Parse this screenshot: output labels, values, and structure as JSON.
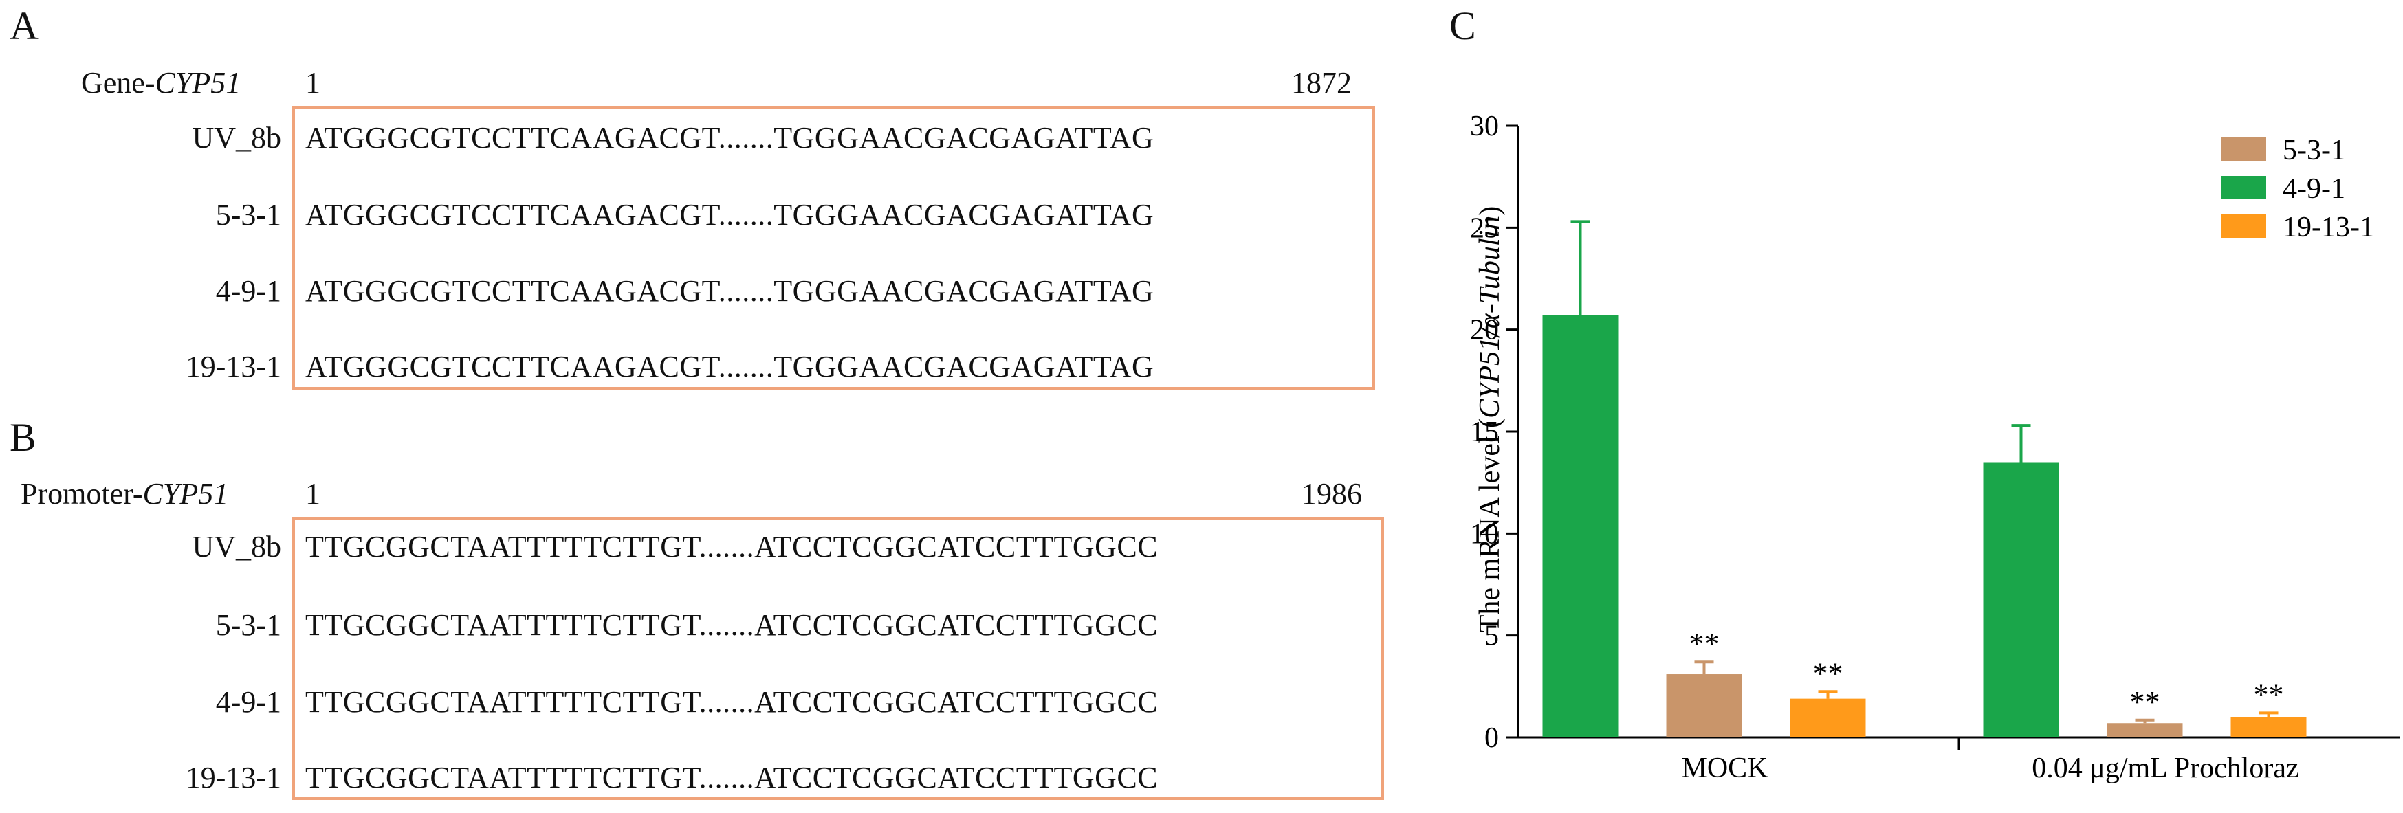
{
  "panels": {
    "a": {
      "letter": "A",
      "title_prefix": "Gene-",
      "title_italic": "CYP51",
      "start": "1",
      "end": "1872",
      "rows": [
        {
          "label": "UV_8b",
          "seq": "ATGGGCGTCCTTCAAGACGT.......TGGGAACGACGAGATTAG"
        },
        {
          "label": "5-3-1",
          "seq": "ATGGGCGTCCTTCAAGACGT.......TGGGAACGACGAGATTAG"
        },
        {
          "label": "4-9-1",
          "seq": "ATGGGCGTCCTTCAAGACGT.......TGGGAACGACGAGATTAG"
        },
        {
          "label": "19-13-1",
          "seq": "ATGGGCGTCCTTCAAGACGT.......TGGGAACGACGAGATTAG"
        }
      ]
    },
    "b": {
      "letter": "B",
      "title_prefix": "Promoter-",
      "title_italic": "CYP51",
      "start": "1",
      "end": "1986",
      "rows": [
        {
          "label": "UV_8b",
          "seq": "TTGCGGCTAATTTTTCTTGT.......ATCCTCGGCATCCTTTGGCC"
        },
        {
          "label": "5-3-1",
          "seq": "TTGCGGCTAATTTTTCTTGT.......ATCCTCGGCATCCTTTGGCC"
        },
        {
          "label": "4-9-1",
          "seq": "TTGCGGCTAATTTTTCTTGT.......ATCCTCGGCATCCTTTGGCC"
        },
        {
          "label": "19-13-1",
          "seq": "TTGCGGCTAATTTTTCTTGT.......ATCCTCGGCATCCTTTGGCC"
        }
      ]
    },
    "c": {
      "letter": "C"
    }
  },
  "colors": {
    "box": "#f0a37a"
  },
  "chart_data": {
    "type": "bar",
    "categories": [
      "MOCK",
      "0.04 μg/mL Prochloraz"
    ],
    "series": [
      {
        "name": "4-9-1",
        "color": "#1aa64a",
        "values": [
          20.7,
          13.5
        ],
        "errors": [
          4.6,
          1.8
        ],
        "sig": [
          "",
          ""
        ]
      },
      {
        "name": "5-3-1",
        "color": "#c9956a",
        "values": [
          3.1,
          0.7
        ],
        "errors": [
          0.6,
          0.15
        ],
        "sig": [
          "**",
          "**"
        ]
      },
      {
        "name": "19-13-1",
        "color": "#ff9a1a",
        "values": [
          1.9,
          1.0
        ],
        "errors": [
          0.35,
          0.2
        ],
        "sig": [
          "**",
          "**"
        ]
      }
    ],
    "legend": [
      "5-3-1",
      "4-9-1",
      "19-13-1"
    ],
    "ylabel_prefix": "The mRNA level (",
    "ylabel_italic": "CYP51/α-Tubulin",
    "ylabel_suffix": ")",
    "ylim": [
      0,
      30
    ],
    "yticks": [
      0,
      5,
      10,
      15,
      20,
      25,
      30
    ],
    "legend_position": "top-right"
  }
}
